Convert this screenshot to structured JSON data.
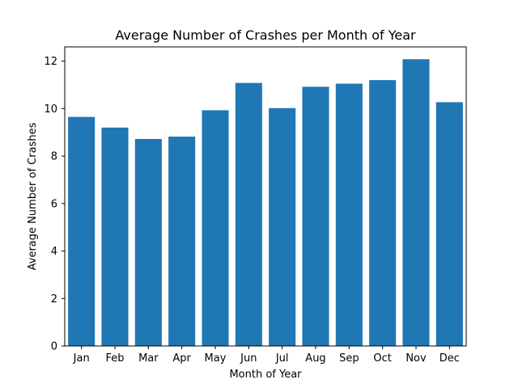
{
  "chart_data": {
    "type": "bar",
    "title": "Average Number of Crashes per Month of Year",
    "xlabel": "Month of Year",
    "ylabel": "Average Number of Crashes",
    "categories": [
      "Jan",
      "Feb",
      "Mar",
      "Apr",
      "May",
      "Jun",
      "Jul",
      "Aug",
      "Sep",
      "Oct",
      "Nov",
      "Dec"
    ],
    "values": [
      9.65,
      9.2,
      8.72,
      8.82,
      9.93,
      11.08,
      10.02,
      10.92,
      11.05,
      11.2,
      12.08,
      10.27
    ],
    "ylim": [
      0,
      12.6
    ],
    "yticks": [
      0,
      2,
      4,
      6,
      8,
      10,
      12
    ],
    "grid": false,
    "bar_color": "#1f77b4"
  }
}
